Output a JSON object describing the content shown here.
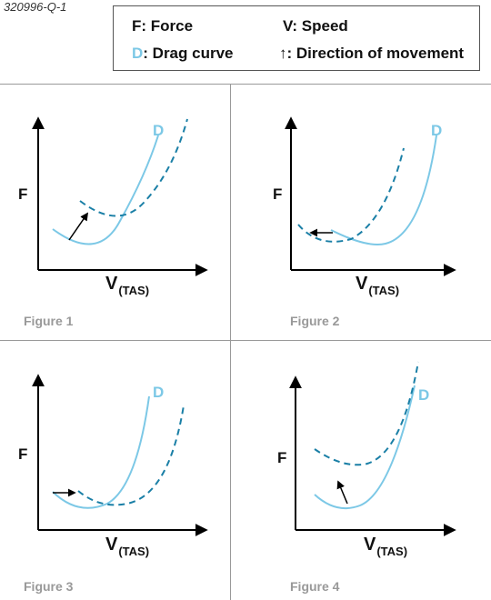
{
  "question_id": "320996-Q-1",
  "legend": {
    "force_symbol": "F",
    "force_text": ": Force",
    "speed_symbol": "V",
    "speed_text": ": Speed",
    "drag_symbol": "D",
    "drag_text": ": Drag curve",
    "direction_symbol": "↑",
    "direction_text": ": Direction of movement"
  },
  "axis": {
    "y_label": "F",
    "x_label_main": "V",
    "x_label_sub": "(TAS)"
  },
  "curve_label": "D",
  "figures": [
    {
      "caption": "Figure 1"
    },
    {
      "caption": "Figure 2"
    },
    {
      "caption": "Figure 3"
    },
    {
      "caption": "Figure 4"
    }
  ],
  "colors": {
    "drag_solid": "#7cc8e6",
    "drag_dashed": "#1a7fa6",
    "axis": "#000000",
    "caption": "#999999",
    "divider": "#999999"
  }
}
